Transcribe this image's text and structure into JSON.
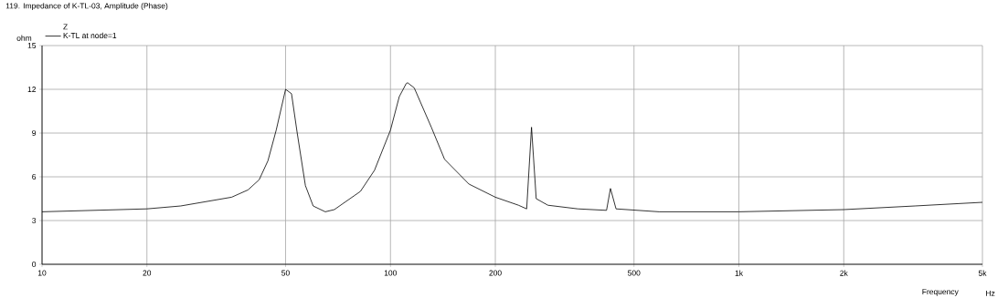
{
  "chart_data": {
    "type": "line",
    "title": "119. Impedance of K-TL-03, Amplitude (Phase)",
    "ylabel": "ohm",
    "xlabel": "Frequency",
    "legend_title": "Z",
    "annotations": [
      "Hz"
    ],
    "log": "x",
    "grid": true,
    "legend": "top left",
    "marker": "none",
    "line_style": "solid",
    "xlim": [
      10,
      5000
    ],
    "ylim": [
      0,
      15
    ],
    "xticks": [
      10,
      20,
      50,
      100,
      200,
      500,
      {
        "value": 1000,
        "label": "1k"
      },
      {
        "value": 2000,
        "label": "2k"
      },
      {
        "value": 5000,
        "label": "5k"
      }
    ],
    "yticks": [
      0,
      3,
      6,
      9,
      12,
      15
    ],
    "series": [
      {
        "name": "K-TL at node=1",
        "color": "#000000",
        "x": [
          10,
          20,
          25,
          35,
          39,
          42,
          44.5,
          47,
          50,
          52,
          54,
          57,
          60,
          65,
          69,
          82,
          90,
          100,
          106,
          111,
          112,
          117,
          131,
          143,
          168,
          200,
          233,
          246,
          254,
          262,
          283,
          345,
          417,
          428,
          444,
          590,
          1000,
          2000,
          3200,
          5000
        ],
        "values": [
          3.6,
          3.8,
          4.0,
          4.6,
          5.1,
          5.8,
          7.1,
          9.2,
          12.0,
          11.7,
          9.0,
          5.4,
          4.0,
          3.6,
          3.75,
          5.0,
          6.45,
          9.2,
          11.5,
          12.4,
          12.45,
          12.1,
          9.4,
          7.2,
          5.5,
          4.6,
          4.05,
          3.8,
          9.4,
          4.5,
          4.05,
          3.8,
          3.7,
          5.2,
          3.8,
          3.6,
          3.6,
          3.75,
          4.0,
          4.25
        ]
      }
    ]
  }
}
